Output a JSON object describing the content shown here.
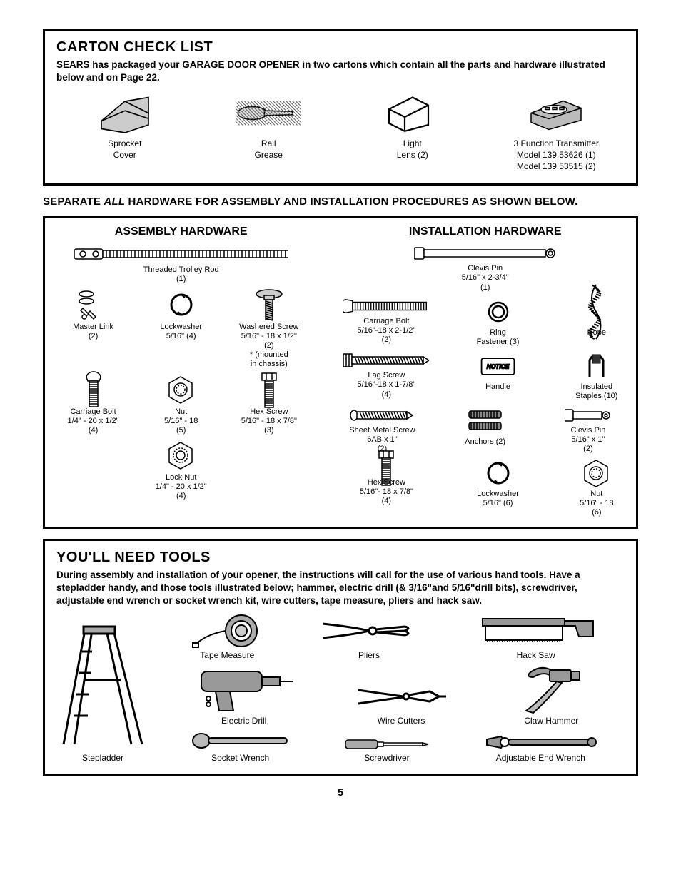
{
  "colors": {
    "fg": "#000000",
    "bg": "#ffffff",
    "hatch": "#555555"
  },
  "carton": {
    "title": "CARTON CHECK LIST",
    "subtitle": "SEARS has packaged your GARAGE DOOR OPENER in two cartons which contain all the parts and hardware illustrated below and on Page 22.",
    "items": [
      {
        "icon": "sprocket-cover",
        "label1": "Sprocket",
        "label2": "Cover"
      },
      {
        "icon": "rail-grease",
        "label1": "Rail",
        "label2": "Grease"
      },
      {
        "icon": "light-lens",
        "label1": "Light",
        "label2": "Lens (2)"
      },
      {
        "icon": "transmitter",
        "label1": "3 Function Transmitter",
        "label2": "Model 139.53626 (1)",
        "label3": "Model 139.53515 (2)"
      }
    ]
  },
  "separator": {
    "pre": "SEPARATE ",
    "ital": "ALL",
    "post": " HARDWARE FOR ASSEMBLY AND INSTALLATION PROCEDURES AS SHOWN BELOW."
  },
  "assembly": {
    "title": "ASSEMBLY HARDWARE",
    "items": [
      {
        "icon": "rodlong",
        "label1": "Threaded Trolley Rod",
        "label2": "(1)",
        "full": true
      },
      {
        "icon": "masterlink",
        "label1": "Master Link",
        "label2": "(2)"
      },
      {
        "icon": "lockwasher",
        "label1": "Lockwasher",
        "label2": "5/16\" (4)"
      },
      {
        "icon": "washscrew",
        "label1": "Washered Screw",
        "label2": "5/16\" - 18 x 1/2\"",
        "label3": "(2)",
        "label4": "* (mounted",
        "label5": "in chassis)"
      },
      {
        "icon": "carriagebolt",
        "label1": "Carriage Bolt",
        "label2": "1/4\" - 20 x 1/2\"",
        "label3": "(4)"
      },
      {
        "icon": "hexnut",
        "label1": "Nut",
        "label2": "5/16\" - 18",
        "label3": "(5)"
      },
      {
        "icon": "hexscrew",
        "label1": "Hex Screw",
        "label2": "5/16\" - 18 x 7/8\"",
        "label3": "(3)"
      },
      {
        "icon": "locknut",
        "label1": "Lock Nut",
        "label2": "1/4\" - 20 x 1/2\"",
        "label3": "(4)"
      }
    ]
  },
  "installation": {
    "title": "INSTALLATION HARDWARE",
    "items": [
      {
        "icon": "clevislong",
        "label1": "Clevis Pin",
        "label2": "5/16\" x 2-3/4\"",
        "label3": "(1)",
        "full": true
      },
      {
        "icon": "carriagebolt2",
        "label1": "Carriage Bolt",
        "label2": "5/16\"-18 x 2-1/2\"",
        "label3": "(2)"
      },
      {
        "icon": "ringfast",
        "label1": "Ring",
        "label2": "Fastener (3)"
      },
      {
        "icon": "rope",
        "label1": "Rope"
      },
      {
        "icon": "lagscrew",
        "label1": "Lag Screw",
        "label2": "5/16\"-18 x 1-7/8\"",
        "label3": "(4)"
      },
      {
        "icon": "handle",
        "label1": "Handle"
      },
      {
        "icon": "staple",
        "label1": "Insulated",
        "label2": "Staples (10)"
      },
      {
        "icon": "sheetscrew",
        "label1": "Sheet Metal Screw",
        "label2": "6AB x 1\"",
        "label3": "(2)"
      },
      {
        "icon": "anchors",
        "label1": "Anchors (2)"
      },
      {
        "icon": "clevisshort",
        "label1": "Clevis Pin",
        "label2": "5/16\" x 1\"",
        "label3": "(2)"
      },
      {
        "icon": "hexscrew2",
        "label1": "Hex Screw",
        "label2": "5/16\"- 18 x 7/8\"",
        "label3": "(4)"
      },
      {
        "icon": "lockwasher2",
        "label1": "Lockwasher",
        "label2": "5/16\" (6)"
      },
      {
        "icon": "hexnut2",
        "label1": "Nut",
        "label2": "5/16\" - 18",
        "label3": "(6)"
      }
    ]
  },
  "tools": {
    "title": "YOU'LL NEED TOOLS",
    "subtitle": "During assembly and installation of your opener, the instructions will call for the use of various hand tools. Have a stepladder handy, and those tools illustrated below; hammer, electric drill (& 3/16\"and 5/16\"drill bits), screwdriver, adjustable end wrench or socket wrench kit, wire cutters, tape measure, pliers and hack saw.",
    "items": [
      {
        "icon": "stepladder",
        "label": "Stepladder",
        "big": true
      },
      {
        "icon": "tapemeasure",
        "label": "Tape Measure"
      },
      {
        "icon": "drill",
        "label": "Electric Drill"
      },
      {
        "icon": "socketwrench",
        "label": "Socket Wrench"
      },
      {
        "icon": "pliers",
        "label": "Pliers"
      },
      {
        "icon": "wirecutters",
        "label": "Wire Cutters"
      },
      {
        "icon": "screwdriver",
        "label": "Screwdriver"
      },
      {
        "icon": "hacksaw",
        "label": "Hack Saw"
      },
      {
        "icon": "clawhammer",
        "label": "Claw Hammer"
      },
      {
        "icon": "wrench",
        "label": "Adjustable End Wrench"
      }
    ]
  },
  "page": "5"
}
